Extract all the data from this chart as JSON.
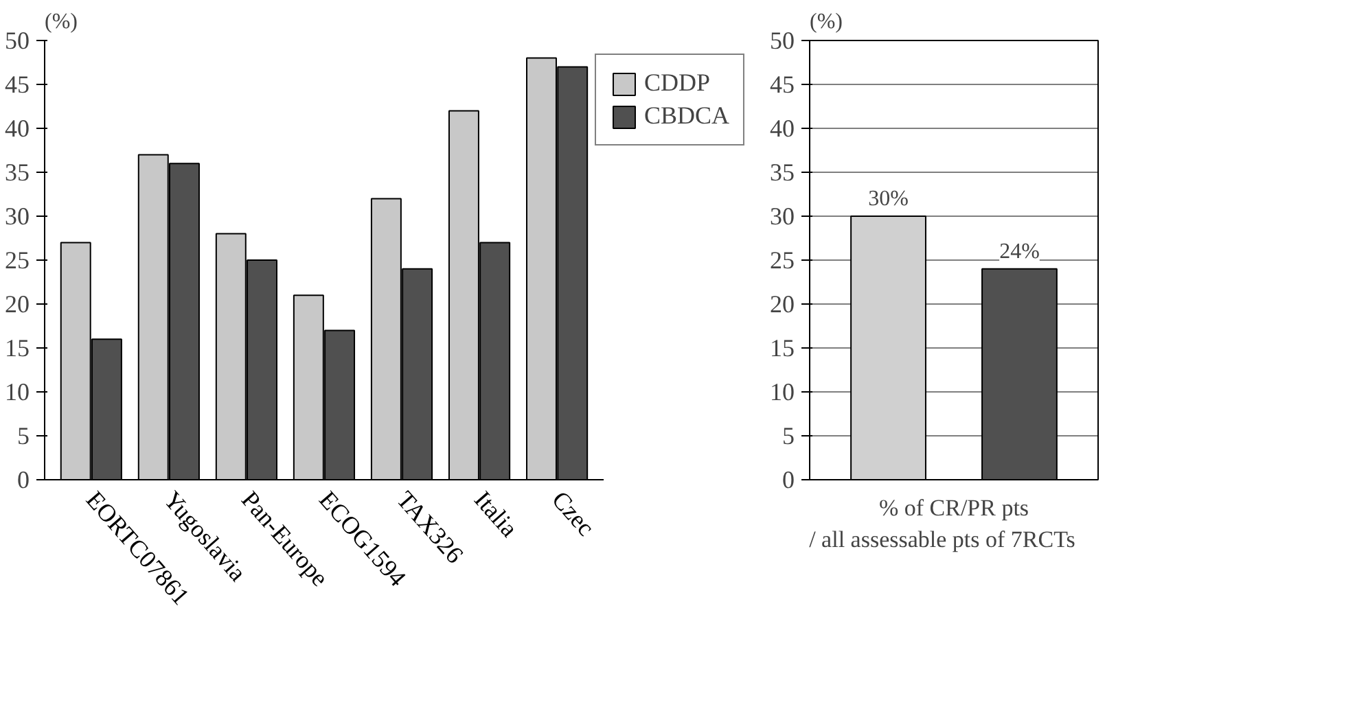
{
  "chart_data": [
    {
      "type": "bar",
      "ylabel": "(%)",
      "categories": [
        "EORTC07861",
        "Yugoslavia",
        "Pan-Europe",
        "ECOG1594",
        "TAX326",
        "Italia",
        "Czec"
      ],
      "series": [
        {
          "name": "CDDP",
          "color": "#c8c8c8",
          "values": [
            27,
            37,
            28,
            21,
            32,
            42,
            48
          ]
        },
        {
          "name": "CBDCA",
          "color": "#505050",
          "values": [
            16,
            36,
            25,
            17,
            24,
            27,
            47
          ]
        }
      ],
      "ylim": [
        0,
        50
      ],
      "yticks": [
        0,
        5,
        10,
        15,
        20,
        25,
        30,
        35,
        40,
        45,
        50
      ],
      "grid": false,
      "legend": "right"
    },
    {
      "type": "bar",
      "ylabel": "(%)",
      "xlabel": "% of CR/PR pts\n    / all assessable pts of 7RCTs",
      "categories": [
        null,
        null
      ],
      "values": [
        30,
        24
      ],
      "colors": [
        "#d0d0d0",
        "#505050"
      ],
      "value_labels": [
        "30%",
        "24%"
      ],
      "ylim": [
        0,
        50
      ],
      "yticks": [
        0,
        5,
        10,
        15,
        20,
        25,
        30,
        35,
        40,
        45,
        50
      ],
      "grid": "y"
    }
  ]
}
